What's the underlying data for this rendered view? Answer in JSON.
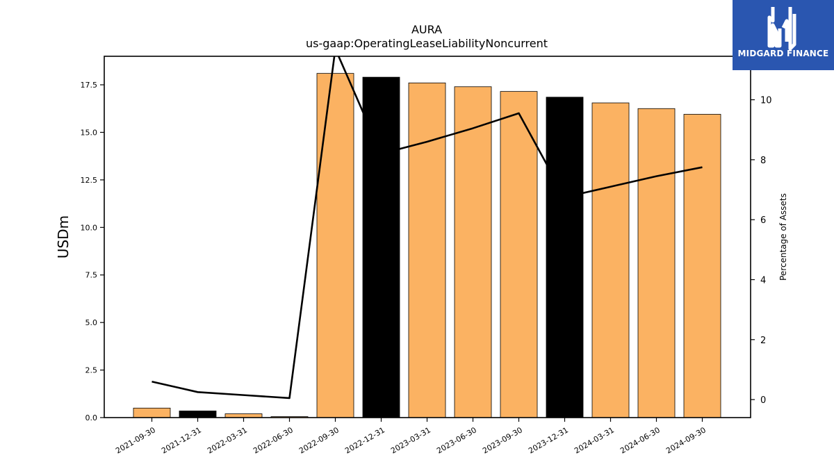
{
  "chart_data": {
    "type": "bar",
    "title": "AURA",
    "subtitle": "us-gaap:OperatingLeaseLiabilityNoncurrent",
    "ylabel": "USDm",
    "ylabel_right": "Percentage of Assets",
    "categories": [
      "2021-09-30",
      "2021-12-31",
      "2022-03-31",
      "2022-06-30",
      "2022-09-30",
      "2022-12-31",
      "2023-03-31",
      "2023-06-30",
      "2023-09-30",
      "2023-12-31",
      "2024-03-31",
      "2024-06-30",
      "2024-09-30"
    ],
    "series": [
      {
        "values": [
          0.5,
          0.35,
          0.2,
          0.05,
          18.1,
          17.9,
          17.6,
          17.4,
          17.15,
          16.85,
          16.55,
          16.25,
          15.95
        ],
        "colors": [
          "#fbb262",
          "#000000",
          "#fbb262",
          "#fbb262",
          "#fbb262",
          "#000000",
          "#fbb262",
          "#fbb262",
          "#fbb262",
          "#000000",
          "#fbb262",
          "#fbb262",
          "#fbb262"
        ]
      },
      {
        "axis": "right",
        "values": [
          0.6,
          0.25,
          0.15,
          0.05,
          11.7,
          8.2,
          8.6,
          9.05,
          9.55,
          6.75,
          7.1,
          7.45,
          7.75
        ],
        "color": "#000000"
      }
    ],
    "ylim": [
      0,
      19.0
    ],
    "ylim_right": [
      -0.6,
      11.45
    ],
    "yticks": [
      0.0,
      2.5,
      5.0,
      7.5,
      10.0,
      12.5,
      15.0,
      17.5
    ],
    "yticks_right": [
      0,
      2,
      4,
      6,
      8,
      10
    ],
    "grid": false
  },
  "logo": {
    "name": "MIDGARD FINANCE",
    "icon": "midgard-logo-icon",
    "bg": "#2a56b0"
  }
}
